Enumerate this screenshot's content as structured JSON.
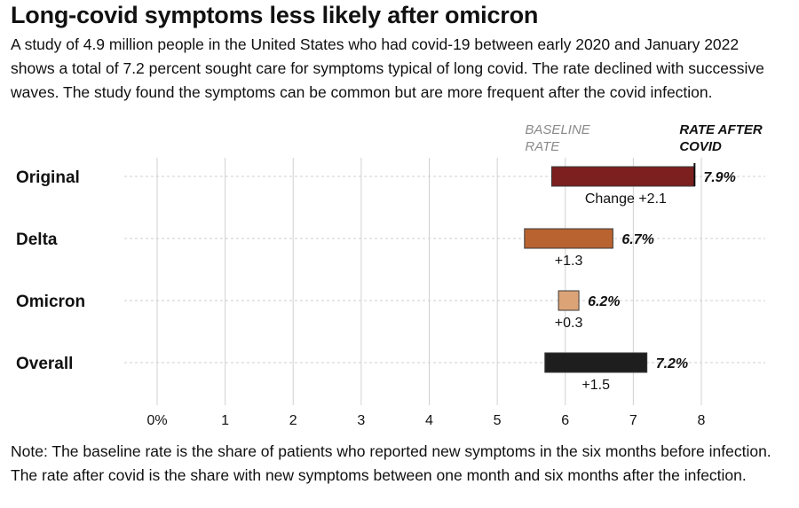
{
  "header": {
    "title": "Long-covid symptoms less likely after omicron",
    "subtitle": "A study of 4.9 million people in the United States who had covid-19 between early 2020 and January 2022 shows a total of 7.2 percent sought care for symptoms typical of long covid. The rate declined with successive waves. The study found the symptoms can be common but are more frequent after the covid infection."
  },
  "note": "Note: The baseline rate is the share of patients who reported new symptoms in the six months before infection. The rate after covid is the share with new symptoms between one month and six months after the infection.",
  "colors": {
    "original": "#7b1f1f",
    "delta": "#b86330",
    "omicron": "#dca377",
    "overall": "#1e1e1e",
    "grid": "#d0d0d0",
    "row_line": "#cfcfcf",
    "marker": "#111111",
    "axis_text": "#111111"
  },
  "chart_data": {
    "type": "bar",
    "subtype": "range-bar",
    "title": "Long-covid symptoms less likely after omicron",
    "series_labels": {
      "baseline": [
        "BASELINE",
        "RATE"
      ],
      "after": [
        "RATE AFTER",
        "COVID"
      ]
    },
    "categories": [
      "Original",
      "Delta",
      "Omicron",
      "Overall"
    ],
    "baseline": [
      5.8,
      5.4,
      5.9,
      5.7
    ],
    "after": [
      7.9,
      6.7,
      6.2,
      7.2
    ],
    "value_labels": [
      "7.9%",
      "6.7%",
      "6.2%",
      "7.2%"
    ],
    "change_labels": [
      "Change +2.1",
      "+1.3",
      "+0.3",
      "+1.5"
    ],
    "color_keys": [
      "original",
      "delta",
      "omicron",
      "overall"
    ],
    "xlim": [
      0,
      8
    ],
    "xticks": [
      0,
      1,
      2,
      3,
      4,
      5,
      6,
      7,
      8
    ],
    "xtick_labels": [
      "0%",
      "1",
      "2",
      "3",
      "4",
      "5",
      "6",
      "7",
      "8"
    ],
    "xlabel": "",
    "ylabel": "",
    "grid": true,
    "legend": "none"
  }
}
